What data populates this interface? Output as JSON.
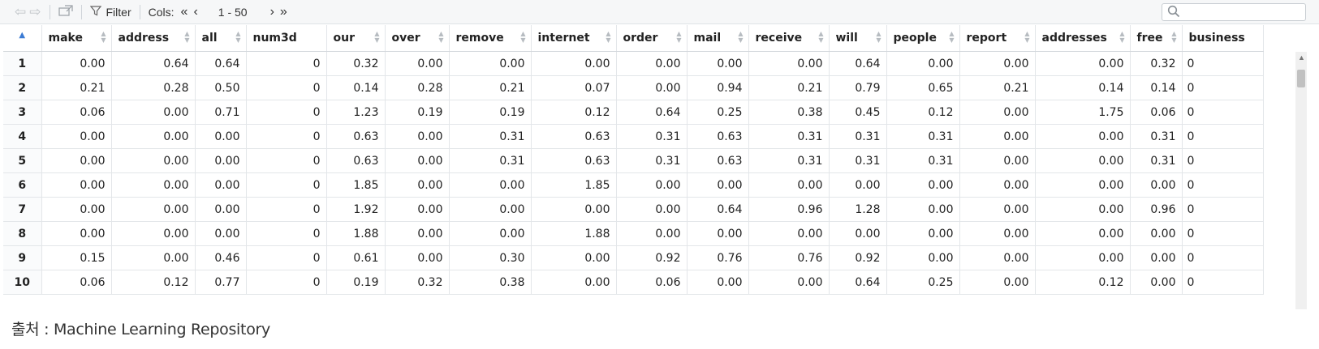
{
  "toolbar": {
    "back_icon": "back-arrow-icon",
    "forward_icon": "forward-arrow-icon",
    "popout_icon": "popout-window-icon",
    "filter_label": "Filter",
    "cols_label": "Cols:",
    "cols_first": "«",
    "cols_prev": "‹",
    "cols_range": "1 - 50",
    "cols_next": "›",
    "cols_last": "»",
    "search_placeholder": ""
  },
  "table": {
    "index_header": "",
    "columns": [
      "make",
      "address",
      "all",
      "num3d",
      "our",
      "over",
      "remove",
      "internet",
      "order",
      "mail",
      "receive",
      "will",
      "people",
      "report",
      "addresses",
      "free",
      "business"
    ],
    "rows": [
      {
        "idx": "1",
        "cells": [
          "0.00",
          "0.64",
          "0.64",
          "0",
          "0.32",
          "0.00",
          "0.00",
          "0.00",
          "0.00",
          "0.00",
          "0.00",
          "0.64",
          "0.00",
          "0.00",
          "0.00",
          "0.32",
          "0"
        ]
      },
      {
        "idx": "2",
        "cells": [
          "0.21",
          "0.28",
          "0.50",
          "0",
          "0.14",
          "0.28",
          "0.21",
          "0.07",
          "0.00",
          "0.94",
          "0.21",
          "0.79",
          "0.65",
          "0.21",
          "0.14",
          "0.14",
          "0"
        ]
      },
      {
        "idx": "3",
        "cells": [
          "0.06",
          "0.00",
          "0.71",
          "0",
          "1.23",
          "0.19",
          "0.19",
          "0.12",
          "0.64",
          "0.25",
          "0.38",
          "0.45",
          "0.12",
          "0.00",
          "1.75",
          "0.06",
          "0"
        ]
      },
      {
        "idx": "4",
        "cells": [
          "0.00",
          "0.00",
          "0.00",
          "0",
          "0.63",
          "0.00",
          "0.31",
          "0.63",
          "0.31",
          "0.63",
          "0.31",
          "0.31",
          "0.31",
          "0.00",
          "0.00",
          "0.31",
          "0"
        ]
      },
      {
        "idx": "5",
        "cells": [
          "0.00",
          "0.00",
          "0.00",
          "0",
          "0.63",
          "0.00",
          "0.31",
          "0.63",
          "0.31",
          "0.63",
          "0.31",
          "0.31",
          "0.31",
          "0.00",
          "0.00",
          "0.31",
          "0"
        ]
      },
      {
        "idx": "6",
        "cells": [
          "0.00",
          "0.00",
          "0.00",
          "0",
          "1.85",
          "0.00",
          "0.00",
          "1.85",
          "0.00",
          "0.00",
          "0.00",
          "0.00",
          "0.00",
          "0.00",
          "0.00",
          "0.00",
          "0"
        ]
      },
      {
        "idx": "7",
        "cells": [
          "0.00",
          "0.00",
          "0.00",
          "0",
          "1.92",
          "0.00",
          "0.00",
          "0.00",
          "0.00",
          "0.64",
          "0.96",
          "1.28",
          "0.00",
          "0.00",
          "0.00",
          "0.96",
          "0"
        ]
      },
      {
        "idx": "8",
        "cells": [
          "0.00",
          "0.00",
          "0.00",
          "0",
          "1.88",
          "0.00",
          "0.00",
          "1.88",
          "0.00",
          "0.00",
          "0.00",
          "0.00",
          "0.00",
          "0.00",
          "0.00",
          "0.00",
          "0"
        ]
      },
      {
        "idx": "9",
        "cells": [
          "0.15",
          "0.00",
          "0.46",
          "0",
          "0.61",
          "0.00",
          "0.30",
          "0.00",
          "0.92",
          "0.76",
          "0.76",
          "0.92",
          "0.00",
          "0.00",
          "0.00",
          "0.00",
          "0"
        ]
      },
      {
        "idx": "10",
        "cells": [
          "0.06",
          "0.12",
          "0.77",
          "0",
          "0.19",
          "0.32",
          "0.38",
          "0.00",
          "0.06",
          "0.00",
          "0.00",
          "0.64",
          "0.25",
          "0.00",
          "0.12",
          "0.00",
          "0"
        ]
      }
    ]
  },
  "caption": "출처 : Machine Learning Repository",
  "colors": {
    "toolbar_bg": "#f6f7f8",
    "sort_active": "#3b7bd4",
    "border": "#e3e6e9"
  }
}
